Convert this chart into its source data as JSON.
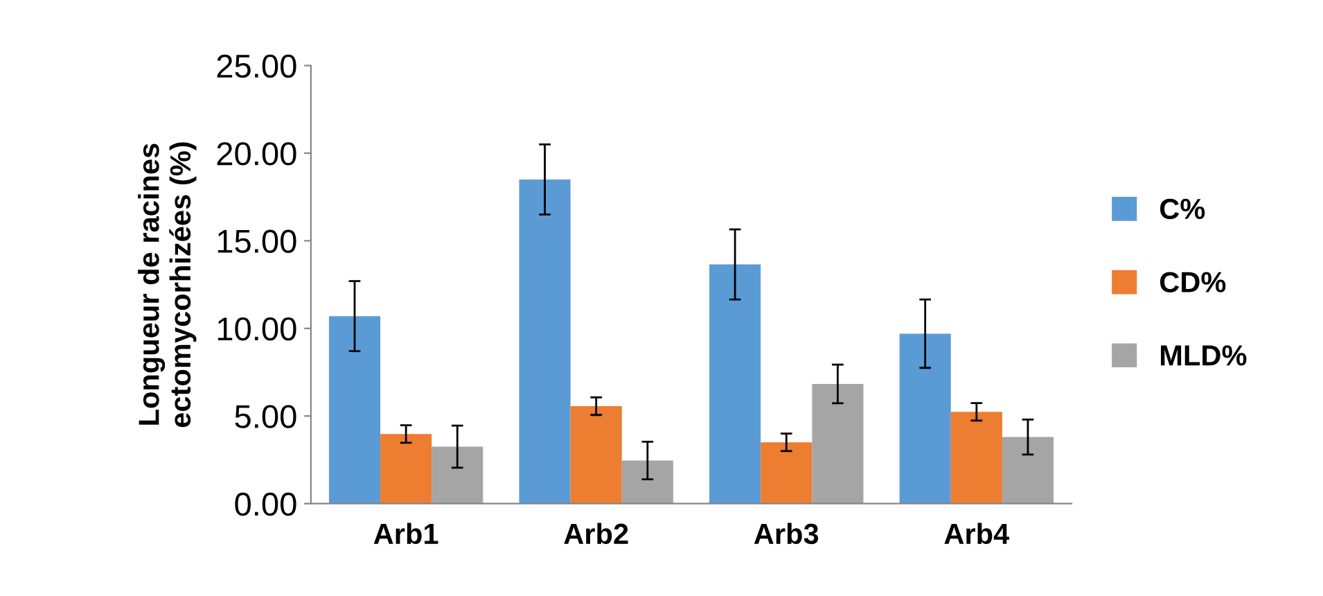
{
  "chart_data": {
    "type": "bar",
    "ylabel": "Longueur de racines\nectomycorhizées (%)",
    "categories": [
      "Arb1",
      "Arb2",
      "Arb3",
      "Arb4"
    ],
    "series": [
      {
        "name": "C%",
        "color": "#5b9bd5",
        "values": [
          10.7,
          18.5,
          13.65,
          9.7
        ],
        "errors": [
          2.0,
          2.0,
          2.0,
          1.95
        ]
      },
      {
        "name": "CD%",
        "color": "#ed7d31",
        "values": [
          3.97,
          5.56,
          3.5,
          5.24
        ],
        "errors": [
          0.5,
          0.5,
          0.5,
          0.5
        ]
      },
      {
        "name": "MLD%",
        "color": "#a5a5a5",
        "values": [
          3.25,
          2.46,
          6.83,
          3.8
        ],
        "errors": [
          1.2,
          1.07,
          1.1,
          1.0
        ]
      }
    ],
    "ylim": [
      0,
      25
    ],
    "yticks": [
      {
        "value": 0,
        "label": "0.00"
      },
      {
        "value": 5,
        "label": "5.00"
      },
      {
        "value": 10,
        "label": "10.00"
      },
      {
        "value": 15,
        "label": "15.00"
      },
      {
        "value": 20,
        "label": "20.00"
      },
      {
        "value": 25,
        "label": "25.00"
      }
    ],
    "grid": false,
    "legend": "right"
  }
}
